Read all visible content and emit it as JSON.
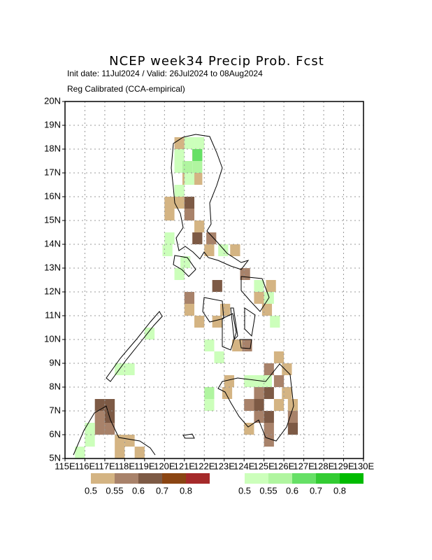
{
  "chart_data": {
    "type": "map",
    "title": "NCEP week34 Precip Prob. Fcst",
    "subtitle": "Init date: 11Jul2024 / Valid: 26Jul2024 to 08Aug2024",
    "note": "Reg Calibrated (CCA-empirical)",
    "xlim": [
      115,
      130
    ],
    "ylim": [
      5,
      20
    ],
    "xticks": [
      {
        "value": 115,
        "label": "115E"
      },
      {
        "value": 116,
        "label": "116E"
      },
      {
        "value": 117,
        "label": "117E"
      },
      {
        "value": 118,
        "label": "118E"
      },
      {
        "value": 119,
        "label": "119E"
      },
      {
        "value": 120,
        "label": "120E"
      },
      {
        "value": 121,
        "label": "121E"
      },
      {
        "value": 122,
        "label": "122E"
      },
      {
        "value": 123,
        "label": "123E"
      },
      {
        "value": 124,
        "label": "124E"
      },
      {
        "value": 125,
        "label": "125E"
      },
      {
        "value": 126,
        "label": "126E"
      },
      {
        "value": 127,
        "label": "127E"
      },
      {
        "value": 128,
        "label": "128E"
      },
      {
        "value": 129,
        "label": "129E"
      },
      {
        "value": 130,
        "label": "130E"
      }
    ],
    "yticks": [
      {
        "value": 5,
        "label": "5N"
      },
      {
        "value": 6,
        "label": "6N"
      },
      {
        "value": 7,
        "label": "7N"
      },
      {
        "value": 8,
        "label": "8N"
      },
      {
        "value": 9,
        "label": "9N"
      },
      {
        "value": 10,
        "label": "10N"
      },
      {
        "value": 11,
        "label": "11N"
      },
      {
        "value": 12,
        "label": "12N"
      },
      {
        "value": 13,
        "label": "13N"
      },
      {
        "value": 14,
        "label": "14N"
      },
      {
        "value": 15,
        "label": "15N"
      },
      {
        "value": 16,
        "label": "16N"
      },
      {
        "value": 17,
        "label": "17N"
      },
      {
        "value": 18,
        "label": "18N"
      },
      {
        "value": 19,
        "label": "19N"
      },
      {
        "value": 20,
        "label": "20N"
      }
    ],
    "grid": true,
    "cell_size": 0.5,
    "dry_scale": {
      "colors": [
        "#d4b483",
        "#a8826a",
        "#7d5a45",
        "#8b4513",
        "#a52a2a"
      ],
      "labels": [
        0.5,
        0.55,
        0.6,
        0.7,
        0.8
      ]
    },
    "wet_scale": {
      "colors": [
        "#ccffbb",
        "#b0f5a0",
        "#66e066",
        "#33cc33",
        "#00bb00"
      ],
      "labels": [
        0.5,
        0.55,
        0.6,
        0.7,
        0.8
      ]
    },
    "dry_cells": [
      {
        "lon": 120.5,
        "lat": 18.0,
        "value": 0.5
      },
      {
        "lon": 121.4,
        "lat": 17.5,
        "value": 0.5
      },
      {
        "lon": 120.9,
        "lat": 16.5,
        "value": 0.5
      },
      {
        "lon": 121.4,
        "lat": 16.5,
        "value": 0.5
      },
      {
        "lon": 120.0,
        "lat": 15.5,
        "value": 0.5
      },
      {
        "lon": 120.5,
        "lat": 15.5,
        "value": 0.5
      },
      {
        "lon": 120.0,
        "lat": 15.0,
        "value": 0.5
      },
      {
        "lon": 121.5,
        "lat": 14.5,
        "value": 0.5
      },
      {
        "lon": 122.0,
        "lat": 13.5,
        "value": 0.5
      },
      {
        "lon": 123.3,
        "lat": 13.5,
        "value": 0.5
      },
      {
        "lon": 121.0,
        "lat": 11.0,
        "value": 0.5
      },
      {
        "lon": 121.5,
        "lat": 10.5,
        "value": 0.5
      },
      {
        "lon": 122.4,
        "lat": 10.5,
        "value": 0.5
      },
      {
        "lon": 122.8,
        "lat": 11.0,
        "value": 0.5
      },
      {
        "lon": 123.4,
        "lat": 9.5,
        "value": 0.5
      },
      {
        "lon": 124.5,
        "lat": 11.5,
        "value": 0.5
      },
      {
        "lon": 124.9,
        "lat": 11.0,
        "value": 0.5
      },
      {
        "lon": 125.1,
        "lat": 12.0,
        "value": 0.5
      },
      {
        "lon": 123.0,
        "lat": 8.0,
        "value": 0.5
      },
      {
        "lon": 122.9,
        "lat": 7.5,
        "value": 0.5
      },
      {
        "lon": 125.5,
        "lat": 9.0,
        "value": 0.5
      },
      {
        "lon": 125.9,
        "lat": 8.5,
        "value": 0.5
      },
      {
        "lon": 125.9,
        "lat": 7.5,
        "value": 0.5
      },
      {
        "lon": 125.5,
        "lat": 7.0,
        "value": 0.5
      },
      {
        "lon": 124.0,
        "lat": 6.0,
        "value": 0.5
      },
      {
        "lon": 126.2,
        "lat": 7.0,
        "value": 0.5
      },
      {
        "lon": 117.5,
        "lat": 5.5,
        "value": 0.5
      },
      {
        "lon": 118.0,
        "lat": 5.5,
        "value": 0.5
      },
      {
        "lon": 118.5,
        "lat": 5.0,
        "value": 0.5
      },
      {
        "lon": 117.5,
        "lat": 5.0,
        "value": 0.5
      },
      {
        "lon": 121.0,
        "lat": 15.0,
        "value": 0.55
      },
      {
        "lon": 122.1,
        "lat": 14.0,
        "value": 0.55
      },
      {
        "lon": 123.8,
        "lat": 12.5,
        "value": 0.55
      },
      {
        "lon": 121.0,
        "lat": 11.5,
        "value": 0.55
      },
      {
        "lon": 123.9,
        "lat": 9.5,
        "value": 0.55
      },
      {
        "lon": 125.0,
        "lat": 8.5,
        "value": 0.55
      },
      {
        "lon": 125.5,
        "lat": 8.0,
        "value": 0.55
      },
      {
        "lon": 124.0,
        "lat": 7.0,
        "value": 0.55
      },
      {
        "lon": 124.5,
        "lat": 6.5,
        "value": 0.55
      },
      {
        "lon": 125.0,
        "lat": 6.0,
        "value": 0.55
      },
      {
        "lon": 116.5,
        "lat": 6.5,
        "value": 0.55
      },
      {
        "lon": 117.0,
        "lat": 6.0,
        "value": 0.55
      },
      {
        "lon": 116.5,
        "lat": 6.0,
        "value": 0.55
      },
      {
        "lon": 126.2,
        "lat": 6.5,
        "value": 0.55
      },
      {
        "lon": 124.5,
        "lat": 7.5,
        "value": 0.55
      },
      {
        "lon": 125.0,
        "lat": 5.5,
        "value": 0.55
      },
      {
        "lon": 121.0,
        "lat": 15.5,
        "value": 0.6
      },
      {
        "lon": 121.4,
        "lat": 14.0,
        "value": 0.6
      },
      {
        "lon": 122.4,
        "lat": 12.0,
        "value": 0.6
      },
      {
        "lon": 117.0,
        "lat": 6.5,
        "value": 0.6
      },
      {
        "lon": 117.0,
        "lat": 7.0,
        "value": 0.6
      },
      {
        "lon": 125.0,
        "lat": 6.5,
        "value": 0.6
      },
      {
        "lon": 126.2,
        "lat": 6.0,
        "value": 0.6
      },
      {
        "lon": 125.0,
        "lat": 7.5,
        "value": 0.6
      },
      {
        "lon": 116.5,
        "lat": 7.0,
        "value": 0.6
      },
      {
        "lon": 124.5,
        "lat": 7.0,
        "value": 0.6
      }
    ],
    "wet_cells": [
      {
        "lon": 121.0,
        "lat": 18.0,
        "value": 0.5
      },
      {
        "lon": 121.5,
        "lat": 18.0,
        "value": 0.5
      },
      {
        "lon": 120.5,
        "lat": 17.5,
        "value": 0.5
      },
      {
        "lon": 120.5,
        "lat": 17.0,
        "value": 0.5
      },
      {
        "lon": 121.0,
        "lat": 16.5,
        "value": 0.5
      },
      {
        "lon": 120.5,
        "lat": 16.0,
        "value": 0.5
      },
      {
        "lon": 120.0,
        "lat": 14.0,
        "value": 0.5
      },
      {
        "lon": 119.9,
        "lat": 13.5,
        "value": 0.5
      },
      {
        "lon": 120.5,
        "lat": 12.5,
        "value": 0.5
      },
      {
        "lon": 120.8,
        "lat": 13.0,
        "value": 0.5
      },
      {
        "lon": 122.7,
        "lat": 13.5,
        "value": 0.5
      },
      {
        "lon": 124.5,
        "lat": 12.0,
        "value": 0.5
      },
      {
        "lon": 125.0,
        "lat": 11.5,
        "value": 0.5
      },
      {
        "lon": 125.3,
        "lat": 10.5,
        "value": 0.5
      },
      {
        "lon": 122.0,
        "lat": 9.5,
        "value": 0.5
      },
      {
        "lon": 122.5,
        "lat": 9.0,
        "value": 0.5
      },
      {
        "lon": 117.5,
        "lat": 8.5,
        "value": 0.5
      },
      {
        "lon": 118.0,
        "lat": 8.5,
        "value": 0.5
      },
      {
        "lon": 119.0,
        "lat": 10.0,
        "value": 0.5
      },
      {
        "lon": 124.0,
        "lat": 8.0,
        "value": 0.5
      },
      {
        "lon": 124.5,
        "lat": 8.0,
        "value": 0.5
      },
      {
        "lon": 124.9,
        "lat": 8.0,
        "value": 0.5
      },
      {
        "lon": 122.0,
        "lat": 7.0,
        "value": 0.5
      },
      {
        "lon": 115.5,
        "lat": 5.0,
        "value": 0.5
      },
      {
        "lon": 116.0,
        "lat": 6.0,
        "value": 0.5
      },
      {
        "lon": 116.0,
        "lat": 5.5,
        "value": 0.5
      },
      {
        "lon": 120.9,
        "lat": 17.0,
        "value": 0.55
      },
      {
        "lon": 121.4,
        "lat": 17.0,
        "value": 0.55
      },
      {
        "lon": 122.0,
        "lat": 7.5,
        "value": 0.55
      },
      {
        "lon": 121.4,
        "lat": 17.5,
        "value": 0.6
      }
    ]
  }
}
